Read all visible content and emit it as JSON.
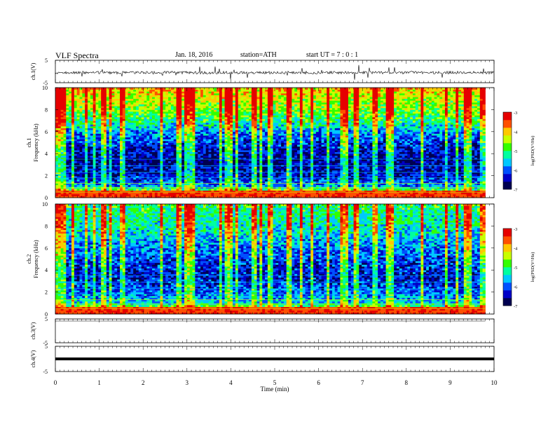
{
  "header": {
    "title": "VLF  Spectra",
    "date": "Jan. 18, 2016",
    "station": "station=ATH",
    "start": "start  UT  =   7 : 0  : 1"
  },
  "colors": {
    "colormap": [
      "#000050",
      "#0000c8",
      "#0050ff",
      "#00c8ff",
      "#00ffa0",
      "#32ff00",
      "#c8ff00",
      "#ffc800",
      "#ff5000",
      "#e60000",
      "#ff8080",
      "#ffffff"
    ],
    "trace": "#000000"
  },
  "chart_data": [
    {
      "type": "line",
      "panel": "ch1-waveform",
      "ylabel": "ch.1(V)",
      "ylim": [
        -5,
        5
      ],
      "y_ticks": [
        "5",
        "-5"
      ],
      "x_range": [
        0,
        10
      ],
      "series": [
        {
          "description_values": "noisy waveform centered near -0.5 V with sferic spikes",
          "x": [
            0,
            9.8
          ],
          "y": [
            -0.5,
            -0.5
          ]
        }
      ]
    },
    {
      "type": "heatmap",
      "panel": "ch1-spectrogram",
      "ylabel": "ch.1\nFrequency  (kHz)",
      "ylim": [
        0,
        10
      ],
      "y_ticks": [
        "0",
        "2",
        "4",
        "6",
        "8",
        "10"
      ],
      "x_range": [
        0,
        9.8
      ],
      "z_range": [
        -7,
        -3
      ],
      "colorbar_label": "log(PSD(V²/Hz)",
      "colorbar_ticks": [
        "-3",
        "-4",
        "-5",
        "-6",
        "-7"
      ],
      "profile_by_freq_khz": [
        {
          "f": 0.3,
          "logpsd": -3.4
        },
        {
          "f": 1.0,
          "logpsd": -5.7
        },
        {
          "f": 2.0,
          "logpsd": -6.4
        },
        {
          "f": 3.5,
          "logpsd": -6.6
        },
        {
          "f": 5.0,
          "logpsd": -6.2
        },
        {
          "f": 6.0,
          "logpsd": -5.8
        },
        {
          "f": 7.0,
          "logpsd": -5.1
        },
        {
          "f": 8.0,
          "logpsd": -4.7
        },
        {
          "f": 9.0,
          "logpsd": -4.4
        },
        {
          "f": 10.0,
          "logpsd": -4.0
        }
      ]
    },
    {
      "type": "heatmap",
      "panel": "ch2-spectrogram",
      "ylabel": "ch.2\nFrequency  (kHz)",
      "ylim": [
        0,
        10
      ],
      "y_ticks": [
        "0",
        "2",
        "4",
        "6",
        "8",
        "10"
      ],
      "x_range": [
        0,
        9.8
      ],
      "z_range": [
        -7,
        -3
      ],
      "colorbar_label": "log(PSD(V²/Hz)",
      "colorbar_ticks": [
        "-3",
        "-4",
        "-5",
        "-6",
        "-7"
      ],
      "profile_by_freq_khz": [
        {
          "f": 0.3,
          "logpsd": -3.6
        },
        {
          "f": 1.0,
          "logpsd": -5.5
        },
        {
          "f": 2.0,
          "logpsd": -6.0
        },
        {
          "f": 3.5,
          "logpsd": -6.4
        },
        {
          "f": 5.0,
          "logpsd": -6.1
        },
        {
          "f": 6.0,
          "logpsd": -5.9
        },
        {
          "f": 7.0,
          "logpsd": -5.6
        },
        {
          "f": 8.0,
          "logpsd": -5.3
        },
        {
          "f": 9.0,
          "logpsd": -5.2
        },
        {
          "f": 10.0,
          "logpsd": -5.0
        }
      ]
    },
    {
      "type": "line",
      "panel": "ch3-waveform",
      "ylabel": "ch.3(V)",
      "ylim": [
        -5,
        5
      ],
      "y_ticks": [
        "5",
        "-5"
      ],
      "x_range": [
        0,
        10
      ],
      "series": []
    },
    {
      "type": "line",
      "panel": "ch4-waveform",
      "ylabel": "ch.4(V)",
      "ylim": [
        -5,
        5
      ],
      "y_ticks": [
        "5",
        "-5"
      ],
      "x_range": [
        0,
        10
      ],
      "series": [
        {
          "description_values": "flat trace near 0 V",
          "x": [
            0,
            9.8
          ],
          "y": [
            0,
            0
          ]
        }
      ]
    }
  ],
  "xaxis": {
    "label": "Time  (min)",
    "ticks": [
      "0",
      "1",
      "2",
      "3",
      "4",
      "5",
      "6",
      "7",
      "8",
      "9",
      "10"
    ],
    "range": [
      0,
      10
    ]
  }
}
